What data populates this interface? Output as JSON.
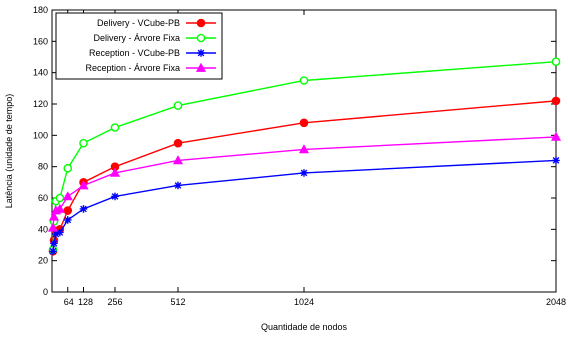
{
  "chart_data": {
    "type": "line",
    "xlabel": "Quantidade de nodos",
    "ylabel": "Latência (unidade de tempo)",
    "xlim": [
      0,
      2048
    ],
    "ylim": [
      0,
      180
    ],
    "x_ticks": [
      64,
      128,
      256,
      512,
      1024,
      2048
    ],
    "y_ticks": [
      0,
      20,
      40,
      60,
      80,
      100,
      120,
      140,
      160,
      180
    ],
    "x_tick_labels": [
      "64",
      "128",
      "256",
      "512",
      "1024",
      "2048"
    ],
    "y_tick_labels": [
      "0",
      "20",
      "40",
      "60",
      "80",
      "100",
      "120",
      "140",
      "160",
      "180"
    ],
    "legend_position": "top-left",
    "grid": false,
    "x": [
      4,
      8,
      16,
      32,
      64,
      128,
      256,
      512,
      1024,
      2048
    ],
    "series": [
      {
        "name": "Delivery - VCube-PB",
        "color": "#ff0000",
        "marker": "filled-circle",
        "values": [
          26,
          33,
          39,
          40,
          52,
          70,
          80,
          95,
          108,
          122
        ]
      },
      {
        "name": "Delivery - Árvore Fixa",
        "color": "#00ff00",
        "marker": "open-circle",
        "values": [
          27,
          45,
          58,
          60,
          79,
          95,
          105,
          119,
          135,
          147
        ]
      },
      {
        "name": "Reception - VCube-PB",
        "color": "#0000ff",
        "marker": "star",
        "values": [
          26,
          31,
          37,
          38,
          46,
          53,
          61,
          68,
          76,
          84
        ]
      },
      {
        "name": "Reception - Árvore Fixa",
        "color": "#ff00ff",
        "marker": "triangle",
        "values": [
          41,
          48,
          52,
          53,
          61,
          68,
          76,
          84,
          91,
          99
        ]
      }
    ]
  }
}
